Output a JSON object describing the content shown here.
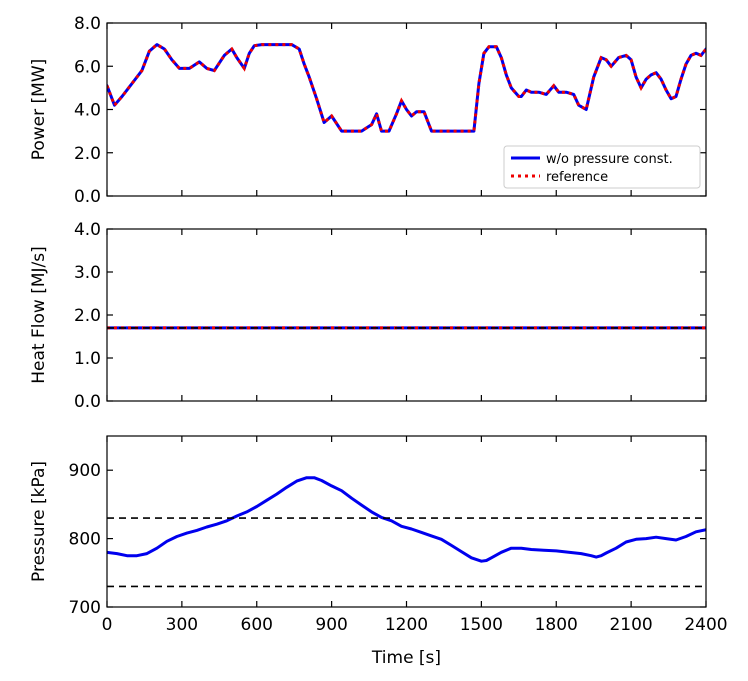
{
  "chart_data": [
    {
      "type": "line",
      "ylabel": "Power [MW]",
      "xlim": [
        0,
        2400
      ],
      "ylim": [
        0,
        8
      ],
      "yticks": [
        "0.0",
        "2.0",
        "4.0",
        "6.0",
        "8.0"
      ],
      "legend": {
        "placement": "lower-right"
      },
      "series": [
        {
          "name": "w/o pressure const.",
          "color": "#0000ee",
          "style": "solid",
          "x": [
            0,
            30,
            60,
            100,
            140,
            170,
            200,
            230,
            260,
            290,
            330,
            370,
            400,
            430,
            470,
            500,
            520,
            550,
            570,
            590,
            620,
            660,
            700,
            740,
            770,
            790,
            810,
            840,
            870,
            900,
            940,
            980,
            1020,
            1060,
            1080,
            1100,
            1130,
            1160,
            1180,
            1200,
            1220,
            1240,
            1270,
            1300,
            1320,
            1340,
            1370,
            1400,
            1440,
            1470,
            1490,
            1510,
            1530,
            1560,
            1580,
            1600,
            1620,
            1650,
            1660,
            1680,
            1700,
            1730,
            1760,
            1790,
            1810,
            1840,
            1870,
            1890,
            1920,
            1950,
            1980,
            2000,
            2020,
            2050,
            2080,
            2100,
            2120,
            2140,
            2160,
            2180,
            2200,
            2220,
            2240,
            2260,
            2280,
            2300,
            2320,
            2340,
            2360,
            2380,
            2400
          ],
          "y": [
            5.1,
            4.2,
            4.6,
            5.2,
            5.8,
            6.7,
            7.0,
            6.8,
            6.3,
            5.9,
            5.9,
            6.2,
            5.9,
            5.8,
            6.5,
            6.8,
            6.4,
            5.9,
            6.6,
            6.95,
            7.0,
            7.0,
            7.0,
            7.0,
            6.8,
            6.1,
            5.5,
            4.5,
            3.4,
            3.7,
            3.0,
            3.0,
            3.0,
            3.3,
            3.8,
            3.0,
            3.0,
            3.8,
            4.4,
            4.0,
            3.7,
            3.9,
            3.9,
            3.0,
            3.0,
            3.0,
            3.0,
            3.0,
            3.0,
            3.0,
            5.2,
            6.6,
            6.9,
            6.9,
            6.4,
            5.6,
            5.0,
            4.6,
            4.6,
            4.9,
            4.8,
            4.8,
            4.7,
            5.1,
            4.8,
            4.8,
            4.7,
            4.2,
            4.0,
            5.5,
            6.4,
            6.3,
            6.0,
            6.4,
            6.5,
            6.3,
            5.5,
            5.0,
            5.4,
            5.6,
            5.7,
            5.4,
            4.9,
            4.5,
            4.6,
            5.4,
            6.1,
            6.5,
            6.6,
            6.5,
            6.8
          ]
        },
        {
          "name": "reference",
          "color": "#ee0000",
          "style": "dotted",
          "x": [
            0,
            30,
            60,
            100,
            140,
            170,
            200,
            230,
            260,
            290,
            330,
            370,
            400,
            430,
            470,
            500,
            520,
            550,
            570,
            590,
            620,
            660,
            700,
            740,
            770,
            790,
            810,
            840,
            870,
            900,
            940,
            980,
            1020,
            1060,
            1080,
            1100,
            1130,
            1160,
            1180,
            1200,
            1220,
            1240,
            1270,
            1300,
            1320,
            1340,
            1370,
            1400,
            1440,
            1470,
            1490,
            1510,
            1530,
            1560,
            1580,
            1600,
            1620,
            1650,
            1660,
            1680,
            1700,
            1730,
            1760,
            1790,
            1810,
            1840,
            1870,
            1890,
            1920,
            1950,
            1980,
            2000,
            2020,
            2050,
            2080,
            2100,
            2120,
            2140,
            2160,
            2180,
            2200,
            2220,
            2240,
            2260,
            2280,
            2300,
            2320,
            2340,
            2360,
            2380,
            2400
          ],
          "y": [
            5.1,
            4.2,
            4.6,
            5.2,
            5.8,
            6.7,
            7.0,
            6.8,
            6.3,
            5.9,
            5.9,
            6.2,
            5.9,
            5.8,
            6.5,
            6.8,
            6.4,
            5.9,
            6.6,
            6.95,
            7.0,
            7.0,
            7.0,
            7.0,
            6.8,
            6.1,
            5.5,
            4.5,
            3.4,
            3.7,
            3.0,
            3.0,
            3.0,
            3.3,
            3.8,
            3.0,
            3.0,
            3.8,
            4.4,
            4.0,
            3.7,
            3.9,
            3.9,
            3.0,
            3.0,
            3.0,
            3.0,
            3.0,
            3.0,
            3.0,
            5.2,
            6.6,
            6.9,
            6.9,
            6.4,
            5.6,
            5.0,
            4.6,
            4.6,
            4.9,
            4.8,
            4.8,
            4.7,
            5.1,
            4.8,
            4.8,
            4.7,
            4.2,
            4.0,
            5.5,
            6.4,
            6.3,
            6.0,
            6.4,
            6.5,
            6.3,
            5.5,
            5.0,
            5.4,
            5.6,
            5.7,
            5.4,
            4.9,
            4.5,
            4.6,
            5.4,
            6.1,
            6.5,
            6.6,
            6.5,
            6.8
          ]
        }
      ]
    },
    {
      "type": "line",
      "ylabel": "Heat Flow [MJ/s]",
      "xlim": [
        0,
        2400
      ],
      "ylim": [
        0,
        4
      ],
      "yticks": [
        "0.0",
        "1.0",
        "2.0",
        "3.0",
        "4.0"
      ],
      "series": [
        {
          "color": "#0000ee",
          "style": "solid",
          "x": [
            0,
            2400
          ],
          "y": [
            1.7,
            1.7
          ]
        },
        {
          "color": "#ee0000",
          "style": "dotted",
          "x": [
            0,
            2400
          ],
          "y": [
            1.7,
            1.7
          ]
        }
      ],
      "hlines": [
        {
          "y": 1.7,
          "color": "#000000",
          "style": "dashed"
        }
      ]
    },
    {
      "type": "line",
      "ylabel": "Pressure [kPa]",
      "xlabel": "Time [s]",
      "xlim": [
        0,
        2400
      ],
      "ylim": [
        700,
        950
      ],
      "yticks": [
        "700",
        "800",
        "900"
      ],
      "xticks": [
        "0",
        "300",
        "600",
        "900",
        "1200",
        "1500",
        "1800",
        "2100",
        "2400"
      ],
      "series": [
        {
          "color": "#0000ee",
          "style": "solid",
          "x": [
            0,
            40,
            80,
            120,
            160,
            200,
            240,
            280,
            320,
            360,
            400,
            440,
            480,
            520,
            560,
            600,
            640,
            680,
            720,
            760,
            800,
            830,
            860,
            900,
            940,
            980,
            1020,
            1060,
            1100,
            1140,
            1180,
            1220,
            1260,
            1300,
            1340,
            1380,
            1420,
            1460,
            1500,
            1520,
            1540,
            1580,
            1620,
            1660,
            1700,
            1750,
            1800,
            1850,
            1900,
            1940,
            1960,
            1980,
            2000,
            2040,
            2080,
            2120,
            2160,
            2200,
            2240,
            2280,
            2320,
            2360,
            2400
          ],
          "y": [
            780,
            778,
            775,
            775,
            778,
            786,
            796,
            803,
            808,
            812,
            817,
            821,
            826,
            833,
            839,
            847,
            856,
            865,
            875,
            884,
            889,
            889,
            885,
            877,
            870,
            859,
            849,
            839,
            831,
            826,
            818,
            814,
            809,
            804,
            799,
            790,
            781,
            772,
            767,
            768,
            772,
            780,
            786,
            786,
            784,
            783,
            782,
            780,
            778,
            775,
            773,
            775,
            779,
            786,
            795,
            799,
            800,
            802,
            800,
            798,
            803,
            810,
            813
          ]
        }
      ],
      "hlines": [
        {
          "y": 830,
          "color": "#000000",
          "style": "dashed"
        },
        {
          "y": 730,
          "color": "#000000",
          "style": "dashed"
        }
      ]
    }
  ]
}
